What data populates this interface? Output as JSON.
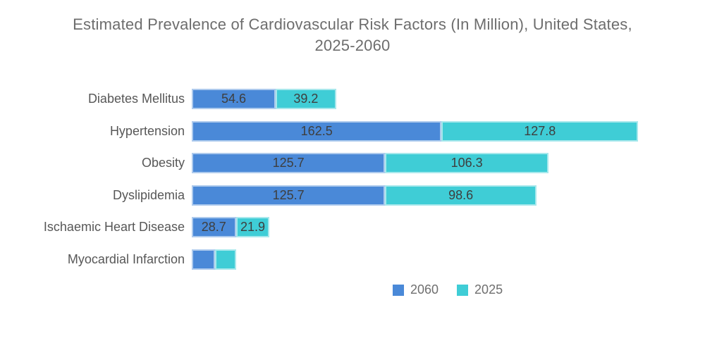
{
  "title_lines": [
    "Estimated Prevalence of Cardiovascular Risk Factors (In Million), United States,",
    "2025-2060"
  ],
  "colors": {
    "background": "#ffffff",
    "series_2060": "#4a89d8",
    "series_2025": "#3fcdd6",
    "title_text": "#6d6d6d",
    "category_text": "#575757",
    "value_text": "#3e3e3e",
    "legend_text": "#6f6f6f"
  },
  "chart_data": {
    "type": "bar",
    "orientation": "horizontal",
    "stacked": true,
    "unit": "million",
    "title": "Estimated Prevalence of Cardiovascular Risk Factors (In Million), United States, 2025-2060",
    "categories": [
      "Diabetes Mellitus",
      "Hypertension",
      "Obesity",
      "Dyslipidemia",
      "Ischaemic Heart Disease",
      "Myocardial Infarction"
    ],
    "series": [
      {
        "name": "2060",
        "color": "#4a89d8",
        "values": [
          54.6,
          162.5,
          125.7,
          125.7,
          28.7,
          15.3
        ],
        "data_labels": [
          "54.6",
          "162.5",
          "125.7",
          "125.7",
          "28.7",
          ""
        ]
      },
      {
        "name": "2025",
        "color": "#3fcdd6",
        "values": [
          39.2,
          127.8,
          106.3,
          98.6,
          21.9,
          13.4
        ],
        "data_labels": [
          "39.2",
          "127.8",
          "106.3",
          "98.6",
          "21.9",
          ""
        ]
      }
    ],
    "xlim": [
      0,
      290.3
    ],
    "grid": false,
    "axis_lines": false,
    "legend_position": "bottom",
    "value_labels_inside_bars": true
  }
}
